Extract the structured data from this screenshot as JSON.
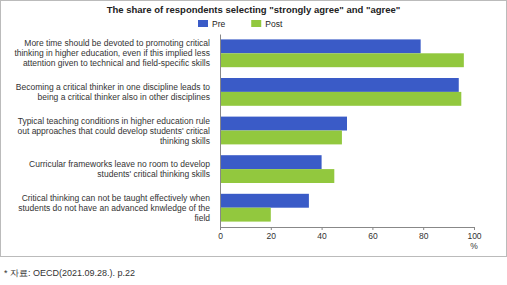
{
  "chart_data": {
    "type": "bar",
    "orientation": "horizontal",
    "title": "The share of respondents selecting \"strongly agree\" and \"agree\"",
    "categories": [
      "More time should be devoted to promoting critical thinking in higher education, even if this implied less attention given to technical and field-specific skills",
      "Becoming a critical thinker in one discipline leads to being a critical thinker also in other disciplines",
      "Typical teaching conditions in higher education rule out approaches that could develop students' critical thinking skills",
      "Curricular frameworks leave no room to develop students' critical thinking skills",
      "Critical thinking can not be taught effectively when students do not have an advanced knwledge of the field"
    ],
    "series": [
      {
        "name": "Pre",
        "color": "#3a5bc7",
        "values": [
          79,
          94,
          50,
          40,
          35
        ]
      },
      {
        "name": "Post",
        "color": "#92c83e",
        "values": [
          96,
          95,
          48,
          45,
          20
        ]
      }
    ],
    "xlabel": "%",
    "xlim": [
      0,
      100
    ],
    "xticks": [
      0,
      20,
      40,
      60,
      80,
      100
    ],
    "grid": false,
    "legend": "top",
    "source": "* 자료: OECD(2021.09.28.). p.22"
  }
}
